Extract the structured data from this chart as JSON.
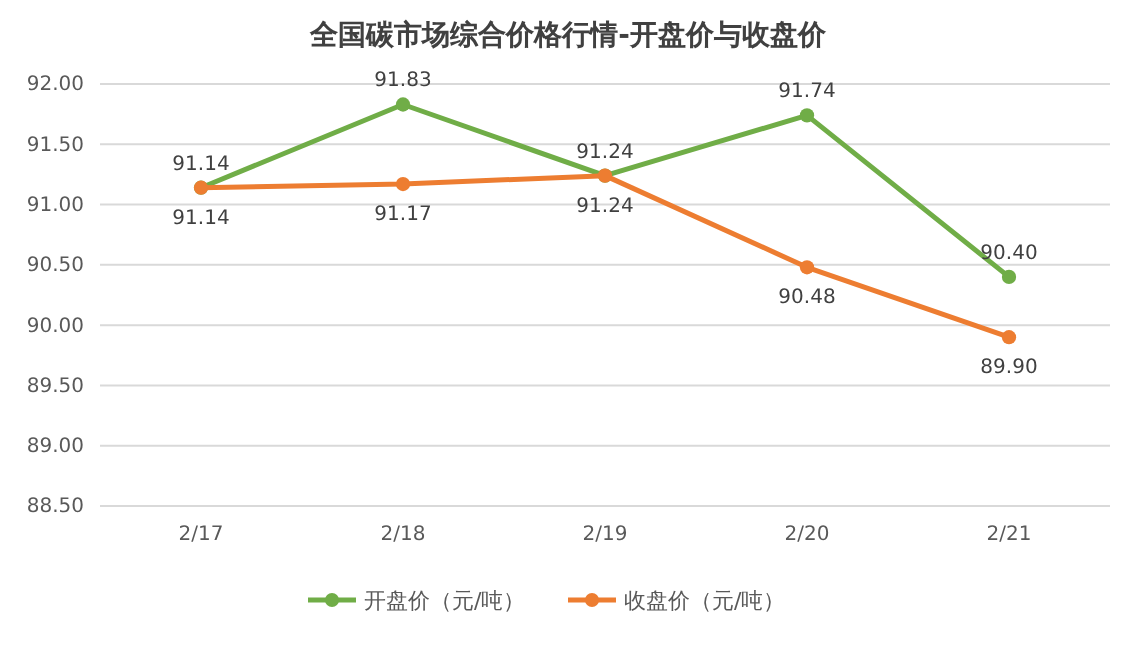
{
  "chart_data": {
    "type": "line",
    "title": "全国碳市场综合价格行情-开盘价与收盘价",
    "categories": [
      "2/17",
      "2/18",
      "2/19",
      "2/20",
      "2/21"
    ],
    "series": [
      {
        "name": "开盘价（元/吨）",
        "color": "#70ad47",
        "values": [
          91.14,
          91.83,
          91.24,
          91.74,
          90.4
        ],
        "value_labels": [
          "91.14",
          "91.83",
          "91.24",
          "91.74",
          "90.40"
        ]
      },
      {
        "name": "收盘价（元/吨）",
        "color": "#ed7d31",
        "values": [
          91.14,
          91.17,
          91.24,
          90.48,
          89.9
        ],
        "value_labels": [
          "91.14",
          "91.17",
          "91.24",
          "90.48",
          "89.90"
        ]
      }
    ],
    "ylim": [
      88.5,
      92
    ],
    "yticks": [
      {
        "value": 88.5,
        "label": "88.50"
      },
      {
        "value": 89,
        "label": "89.00"
      },
      {
        "value": 89.5,
        "label": "89.50"
      },
      {
        "value": 90,
        "label": "90.00"
      },
      {
        "value": 90.5,
        "label": "90.50"
      },
      {
        "value": 91,
        "label": "91.00"
      },
      {
        "value": 91.5,
        "label": "91.50"
      },
      {
        "value": 92,
        "label": "92.00"
      }
    ],
    "grid": "y",
    "legend": "bottom",
    "marker": "circle",
    "line_style": "solid"
  }
}
